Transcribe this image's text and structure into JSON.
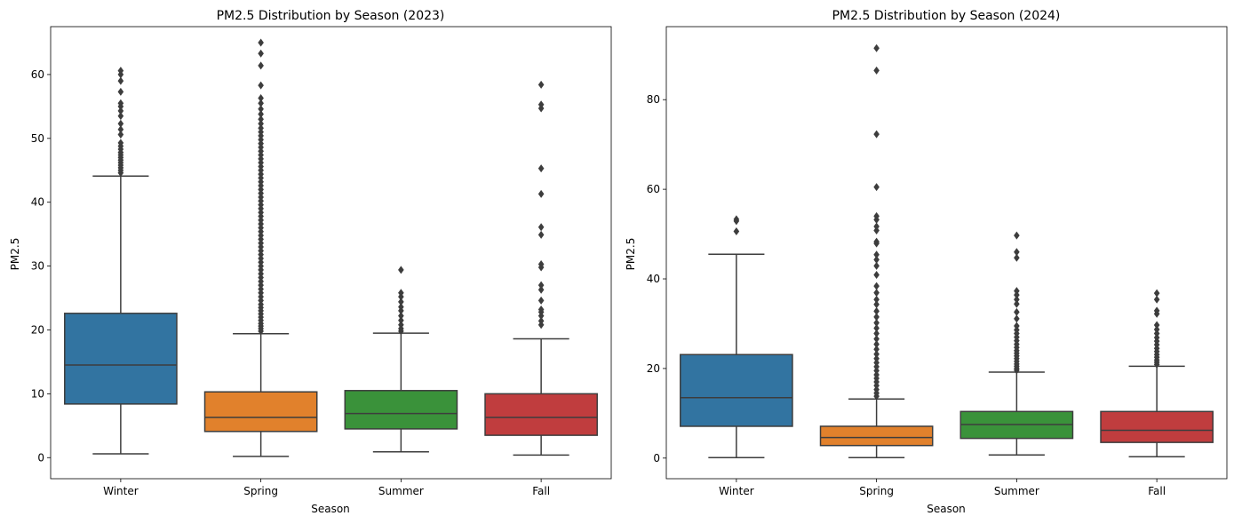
{
  "chart_data": [
    {
      "type": "box",
      "title": "PM2.5 Distribution by Season (2023)",
      "xlabel": "Season",
      "ylabel": "PM2.5",
      "categories": [
        "Winter",
        "Spring",
        "Summer",
        "Fall"
      ],
      "colors": [
        "#3274a1",
        "#e1812c",
        "#3a923a",
        "#c03d3e"
      ],
      "ylim": [
        -3.3,
        67.5
      ],
      "yticks": [
        0,
        10,
        20,
        30,
        40,
        50,
        60
      ],
      "boxes": [
        {
          "whisker_low": 0.6,
          "q1": 8.4,
          "median": 14.5,
          "q3": 22.6,
          "whisker_high": 44.1,
          "outliers": [
            44.6,
            45.0,
            45.4,
            45.8,
            46.2,
            46.6,
            47.0,
            47.4,
            47.8,
            48.3,
            48.8,
            49.3,
            50.6,
            51.4,
            52.3,
            53.5,
            54.3,
            55.0,
            55.5,
            57.3,
            59.0,
            60.0,
            60.6
          ]
        },
        {
          "whisker_low": 0.2,
          "q1": 4.1,
          "median": 6.3,
          "q3": 10.3,
          "whisker_high": 19.4,
          "outliers": [
            19.8,
            20.2,
            20.6,
            21.0,
            21.5,
            22.0,
            22.5,
            23.0,
            23.5,
            24.0,
            24.6,
            25.2,
            25.8,
            26.4,
            27.0,
            27.6,
            28.2,
            28.8,
            29.4,
            30.0,
            30.6,
            31.2,
            31.8,
            32.4,
            33.0,
            33.6,
            34.2,
            34.8,
            35.4,
            36.0,
            36.6,
            37.2,
            37.8,
            38.4,
            39.0,
            39.6,
            40.2,
            40.8,
            41.4,
            42.0,
            42.6,
            43.2,
            43.8,
            44.4,
            45.0,
            45.6,
            46.2,
            46.8,
            47.4,
            48.0,
            48.6,
            49.2,
            49.8,
            50.4,
            51.0,
            51.6,
            52.3,
            53.0,
            53.8,
            54.6,
            55.5,
            56.3,
            58.3,
            61.4,
            63.3,
            65.0
          ]
        },
        {
          "whisker_low": 0.9,
          "q1": 4.5,
          "median": 6.9,
          "q3": 10.5,
          "whisker_high": 19.5,
          "outliers": [
            19.8,
            20.2,
            20.8,
            21.5,
            22.2,
            23.0,
            23.6,
            24.4,
            25.2,
            25.8,
            29.4
          ]
        },
        {
          "whisker_low": 0.4,
          "q1": 3.5,
          "median": 6.3,
          "q3": 10.0,
          "whisker_high": 18.6,
          "outliers": [
            20.8,
            21.4,
            22.2,
            22.8,
            23.2,
            24.6,
            26.3,
            27.0,
            29.8,
            30.3,
            34.9,
            36.1,
            41.3,
            45.3,
            54.7,
            55.3,
            58.4
          ]
        }
      ]
    },
    {
      "type": "box",
      "title": "PM2.5 Distribution by Season (2024)",
      "xlabel": "Season",
      "ylabel": "PM2.5",
      "categories": [
        "Winter",
        "Spring",
        "Summer",
        "Fall"
      ],
      "colors": [
        "#3274a1",
        "#e1812c",
        "#3a923a",
        "#c03d3e"
      ],
      "ylim": [
        -4.6,
        96.3
      ],
      "yticks": [
        0,
        20,
        40,
        60,
        80
      ],
      "boxes": [
        {
          "whisker_low": 0.1,
          "q1": 7.1,
          "median": 13.5,
          "q3": 23.1,
          "whisker_high": 45.5,
          "outliers": [
            50.6,
            52.9,
            53.3
          ]
        },
        {
          "whisker_low": 0.1,
          "q1": 2.8,
          "median": 4.6,
          "q3": 7.1,
          "whisker_high": 13.2,
          "outliers": [
            13.8,
            14.5,
            15.3,
            16.2,
            17.0,
            17.8,
            18.6,
            19.5,
            20.4,
            21.3,
            22.2,
            23.2,
            24.3,
            25.4,
            26.6,
            27.8,
            29.0,
            30.2,
            31.5,
            32.8,
            34.3,
            35.4,
            36.9,
            38.4,
            40.9,
            42.9,
            44.3,
            45.4,
            47.9,
            48.3,
            50.8,
            51.7,
            53.2,
            54.0,
            60.5,
            72.3,
            86.5,
            91.5
          ]
        },
        {
          "whisker_low": 0.7,
          "q1": 4.4,
          "median": 7.5,
          "q3": 10.4,
          "whisker_high": 19.2,
          "outliers": [
            19.6,
            20.0,
            20.5,
            21.0,
            21.6,
            22.2,
            22.8,
            23.4,
            24.0,
            24.7,
            25.4,
            26.2,
            27.0,
            27.8,
            28.6,
            29.5,
            31.1,
            32.6,
            34.4,
            35.4,
            36.4,
            37.3,
            44.7,
            46.0,
            49.7
          ]
        },
        {
          "whisker_low": 0.3,
          "q1": 3.5,
          "median": 6.2,
          "q3": 10.4,
          "whisker_high": 20.5,
          "outliers": [
            20.9,
            21.4,
            21.9,
            22.5,
            23.1,
            23.8,
            24.5,
            25.3,
            26.1,
            26.9,
            27.8,
            28.7,
            29.7,
            32.2,
            32.9,
            35.4,
            36.8
          ]
        }
      ]
    }
  ]
}
